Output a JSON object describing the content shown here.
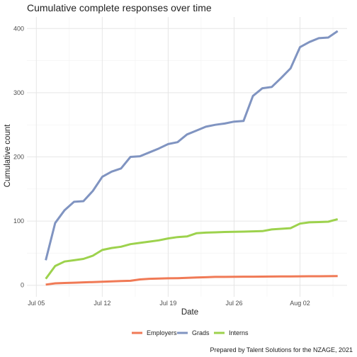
{
  "chart_data": {
    "type": "line",
    "title": "Cumulative complete responses over time",
    "xlabel": "Date",
    "ylabel": "Cumulative count",
    "caption": "Prepared by Talent Solutions for the NZAGE, 2021",
    "x_ticks": [
      {
        "date": "2021-07-05",
        "label": "Jul 05"
      },
      {
        "date": "2021-07-12",
        "label": "Jul 12"
      },
      {
        "date": "2021-07-19",
        "label": "Jul 19"
      },
      {
        "date": "2021-07-26",
        "label": "Jul 26"
      },
      {
        "date": "2021-08-02",
        "label": "Aug 02"
      }
    ],
    "xlim": [
      "2021-07-04",
      "2021-08-07"
    ],
    "y_ticks": [
      0,
      100,
      200,
      300,
      400
    ],
    "ylim": [
      -18,
      418
    ],
    "grid": true,
    "legend_position": "bottom",
    "x": [
      "2021-07-06",
      "2021-07-07",
      "2021-07-08",
      "2021-07-09",
      "2021-07-10",
      "2021-07-11",
      "2021-07-12",
      "2021-07-13",
      "2021-07-14",
      "2021-07-15",
      "2021-07-16",
      "2021-07-17",
      "2021-07-18",
      "2021-07-19",
      "2021-07-20",
      "2021-07-21",
      "2021-07-22",
      "2021-07-23",
      "2021-07-24",
      "2021-07-25",
      "2021-07-26",
      "2021-07-27",
      "2021-07-28",
      "2021-07-29",
      "2021-07-30",
      "2021-07-31",
      "2021-08-01",
      "2021-08-02",
      "2021-08-03",
      "2021-08-04",
      "2021-08-05",
      "2021-08-06",
      "2021-08-07"
    ],
    "series": [
      {
        "name": "Employers",
        "color": "#f07a56",
        "values": [
          1,
          3,
          3.5,
          4,
          4.5,
          5,
          5.5,
          6,
          6.5,
          7,
          9,
          10,
          10.5,
          10.8,
          11,
          11.5,
          12,
          12.5,
          13,
          13,
          13.2,
          13.3,
          13.4,
          13.5,
          13.6,
          13.7,
          13.8,
          13.9,
          14,
          14,
          14.1,
          14.2,
          null
        ]
      },
      {
        "name": "Grads",
        "color": "#8094c1",
        "values": [
          39,
          97,
          117,
          130,
          131,
          147,
          169,
          177,
          182,
          200,
          201,
          207,
          213,
          220,
          223,
          235,
          241,
          247,
          250,
          252,
          255,
          256,
          295,
          307,
          309,
          323,
          338,
          371,
          379,
          385,
          386,
          396,
          null
        ]
      },
      {
        "name": "Interns",
        "color": "#9dd24d",
        "values": [
          10,
          30,
          37,
          39,
          41,
          46,
          55,
          58,
          60,
          64,
          66,
          68,
          70,
          73,
          75,
          76,
          81,
          82,
          82.5,
          83,
          83.2,
          83.5,
          84,
          84.3,
          87,
          88,
          89,
          96,
          98,
          98.5,
          99,
          103,
          null
        ]
      }
    ]
  }
}
